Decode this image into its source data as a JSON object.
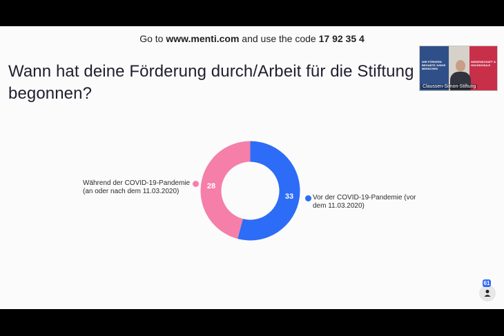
{
  "join": {
    "prefix": "Go to",
    "url": "www.menti.com",
    "middle": "and use the code",
    "code": "17 92 35 4"
  },
  "question": "Wann hat deine Förderung durch/Arbeit für die Stiftung begonnen?",
  "video": {
    "caption": "Claussen-Simon-Stiftung",
    "banner_left": "WIR FÖRDERN BEGABTE JUNGE MENSCHEN",
    "banner_right": "WISSENSCHAFT & HOCHSCHULE"
  },
  "colors": {
    "during": "#f57fa9",
    "before": "#2d6cf6"
  },
  "chart_data": {
    "type": "pie",
    "style": "donut",
    "slices": [
      {
        "label": "Vor der COVID-19-Pandemie (vor dem 11.03.2020)",
        "value": 33
      },
      {
        "label": "Während der COVID-19-Pandemie (an oder nach dem 11.03.2020)",
        "value": 28
      }
    ]
  },
  "labels": {
    "before": "Vor der COVID-19-Pandemie (vor dem 11.03.2020)",
    "during": "Während der COVID-19-Pandemie (an oder nach dem 11.03.2020)"
  },
  "participants": {
    "count": "61"
  }
}
